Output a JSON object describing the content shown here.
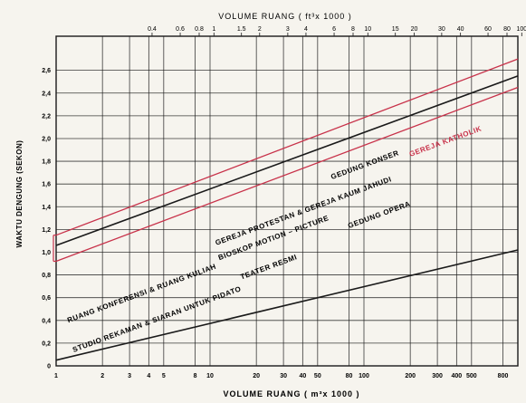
{
  "chart_data": {
    "type": "line",
    "title": "",
    "xlabel_top": "VOLUME RUANG   ( ft³x 1000 )",
    "xlabel_bottom": "VOLUME RUANG   ( m³x 1000 )",
    "ylabel": "WAKTU DENGUNG (SEKON)",
    "x_scale": "log",
    "xlim": [
      1,
      1000
    ],
    "ylim": [
      0,
      2.9
    ],
    "grid": true,
    "x_ticks_bottom": [
      {
        "v": 1,
        "label": "1"
      },
      {
        "v": 2,
        "label": "2"
      },
      {
        "v": 3,
        "label": "3"
      },
      {
        "v": 4,
        "label": "4"
      },
      {
        "v": 5,
        "label": "5"
      },
      {
        "v": 8,
        "label": "8"
      },
      {
        "v": 10,
        "label": "10"
      },
      {
        "v": 20,
        "label": "20"
      },
      {
        "v": 30,
        "label": "30"
      },
      {
        "v": 40,
        "label": "40"
      },
      {
        "v": 50,
        "label": "50"
      },
      {
        "v": 80,
        "label": "80"
      },
      {
        "v": 100,
        "label": "100"
      },
      {
        "v": 200,
        "label": "200"
      },
      {
        "v": 300,
        "label": "300"
      },
      {
        "v": 400,
        "label": "400"
      },
      {
        "v": 500,
        "label": "500"
      },
      {
        "v": 800,
        "label": "800"
      }
    ],
    "x_ticks_top": [
      {
        "v": 4.2,
        "label": "0.4"
      },
      {
        "v": 6.4,
        "label": "0.6"
      },
      {
        "v": 8.5,
        "label": "0.8"
      },
      {
        "v": 10.6,
        "label": "1"
      },
      {
        "v": 16,
        "label": "1.5"
      },
      {
        "v": 21,
        "label": "2"
      },
      {
        "v": 32,
        "label": "3"
      },
      {
        "v": 42,
        "label": "4"
      },
      {
        "v": 64,
        "label": "6"
      },
      {
        "v": 85,
        "label": "8"
      },
      {
        "v": 106,
        "label": "10"
      },
      {
        "v": 160,
        "label": "15"
      },
      {
        "v": 212,
        "label": "20"
      },
      {
        "v": 320,
        "label": "30"
      },
      {
        "v": 424,
        "label": "40"
      },
      {
        "v": 640,
        "label": "60"
      },
      {
        "v": 850,
        "label": "80"
      },
      {
        "v": 1060,
        "label": "100"
      },
      {
        "v": 1600,
        "label": "150"
      },
      {
        "v": 2650,
        "label": "250"
      }
    ],
    "y_ticks": [
      {
        "v": 0,
        "label": "0"
      },
      {
        "v": 0.2,
        "label": "0,2"
      },
      {
        "v": 0.4,
        "label": "0,4"
      },
      {
        "v": 0.6,
        "label": "0,6"
      },
      {
        "v": 0.8,
        "label": "0,8"
      },
      {
        "v": 1.0,
        "label": "1,0"
      },
      {
        "v": 1.2,
        "label": "1,2"
      },
      {
        "v": 1.4,
        "label": "1,4"
      },
      {
        "v": 1.6,
        "label": "1,6"
      },
      {
        "v": 1.8,
        "label": "1,8"
      },
      {
        "v": 2.0,
        "label": "2,0"
      },
      {
        "v": 2.2,
        "label": "2,2"
      },
      {
        "v": 2.4,
        "label": "2,4"
      },
      {
        "v": 2.6,
        "label": "2,6"
      }
    ],
    "series": [
      {
        "x": [
          1,
          1000
        ],
        "y": [
          1.06,
          2.55
        ],
        "color": "#1a1a1a"
      },
      {
        "x": [
          1,
          1000
        ],
        "y": [
          1.15,
          2.7
        ],
        "color": "#c8324a"
      },
      {
        "x": [
          1,
          1000
        ],
        "y": [
          0.92,
          2.45
        ],
        "color": "#c8324a"
      },
      {
        "x": [
          1,
          1000
        ],
        "y": [
          0.05,
          1.02
        ],
        "color": "#1a1a1a"
      }
    ],
    "annotations": [
      {
        "text": "GEREJA KATHOLIK",
        "x": 200,
        "y": 1.84
      },
      {
        "text": "GEDUNG KONSER",
        "x": 62,
        "y": 1.64
      },
      {
        "text": "GEREJA PROTESTAN & GEREJA KAUM JAHUDI",
        "x": 11,
        "y": 1.06
      },
      {
        "text": "BIOSKOP MOTION – PICTURE",
        "x": 11.5,
        "y": 0.93
      },
      {
        "text": "GEDUNG OPERA",
        "x": 80,
        "y": 1.21
      },
      {
        "text": "TEATER RESMI",
        "x": 16,
        "y": 0.76
      },
      {
        "text": "RUANG KONFERENSI & RUANG KULIAH",
        "x": 1.2,
        "y": 0.38
      },
      {
        "text": "STUDIO REKAMAN & SIARAN UNTUK PIDATO",
        "x": 1.3,
        "y": 0.12
      }
    ],
    "colors": {
      "paper": "#f6f4ee",
      "ink": "#1a1a1a",
      "optimum_band": "#c8324a"
    }
  }
}
